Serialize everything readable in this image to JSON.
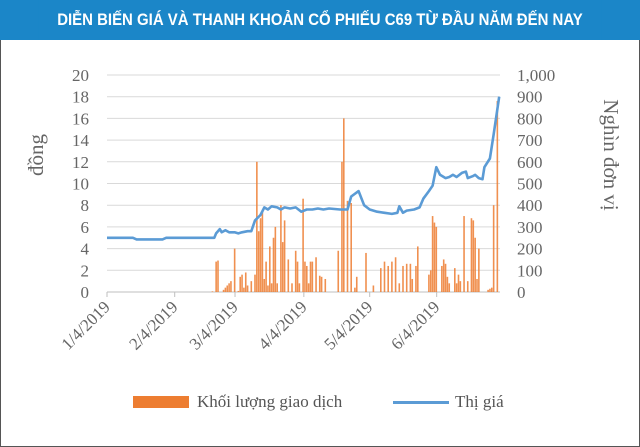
{
  "title": "DIỄN BIẾN GIÁ VÀ THANH KHOẢN CỔ PHIẾU C69 TỪ ĐẦU NĂM ĐẾN NAY",
  "colors": {
    "header": "#1b86c8",
    "price_line": "#5b9bd5",
    "volume_bar": "#ed7d31",
    "grid": "#d9d9d9",
    "text": "#666666"
  },
  "chart_data": {
    "type": "bar+line",
    "title": "DIỄN BIẾN GIÁ VÀ THANH KHOẢN CỔ PHIẾU C69 TỪ ĐẦU NĂM ĐẾN NAY",
    "ylabel_left": "đồng",
    "ylabel_right": "Nghìn đơn vị",
    "y_left_ticks": [
      "0",
      "2",
      "4",
      "6",
      "8",
      "10",
      "12",
      "14",
      "16",
      "18",
      "20"
    ],
    "y_left_range": [
      0,
      20
    ],
    "y_right_ticks": [
      "0",
      "100",
      "200",
      "300",
      "400",
      "500",
      "600",
      "700",
      "800",
      "900",
      "1,000"
    ],
    "y_right_range": [
      0,
      1000
    ],
    "x_ticks": [
      "1/4/2019",
      "2/4/2019",
      "3/4/2019",
      "4/4/2019",
      "5/4/2019",
      "6/4/2019"
    ],
    "x_tick_positions": [
      0.0,
      0.183,
      0.346,
      0.532,
      0.71,
      0.891
    ],
    "grid": true,
    "legend_position": "bottom",
    "legend": [
      "Khối lượng giao dịch",
      "Thị giá"
    ],
    "series": [
      {
        "name": "Thị giá",
        "type": "line",
        "axis": "left",
        "points": [
          [
            0.0,
            5.0
          ],
          [
            0.07,
            5.0
          ],
          [
            0.08,
            4.85
          ],
          [
            0.15,
            4.85
          ],
          [
            0.16,
            5.0
          ],
          [
            0.28,
            5.0
          ],
          [
            0.29,
            5.0
          ],
          [
            0.295,
            5.4
          ],
          [
            0.305,
            5.8
          ],
          [
            0.31,
            5.5
          ],
          [
            0.32,
            5.7
          ],
          [
            0.33,
            5.5
          ],
          [
            0.345,
            5.5
          ],
          [
            0.355,
            5.4
          ],
          [
            0.365,
            5.5
          ],
          [
            0.38,
            5.6
          ],
          [
            0.39,
            5.6
          ],
          [
            0.4,
            6.6
          ],
          [
            0.415,
            7.1
          ],
          [
            0.425,
            7.8
          ],
          [
            0.435,
            7.6
          ],
          [
            0.445,
            7.9
          ],
          [
            0.46,
            7.8
          ],
          [
            0.47,
            7.6
          ],
          [
            0.48,
            7.8
          ],
          [
            0.495,
            7.7
          ],
          [
            0.51,
            7.8
          ],
          [
            0.525,
            7.4
          ],
          [
            0.54,
            7.6
          ],
          [
            0.555,
            7.6
          ],
          [
            0.57,
            7.7
          ],
          [
            0.585,
            7.6
          ],
          [
            0.6,
            7.7
          ],
          [
            0.63,
            7.6
          ],
          [
            0.65,
            7.6
          ],
          [
            0.66,
            8.8
          ],
          [
            0.68,
            9.3
          ],
          [
            0.695,
            8.0
          ],
          [
            0.71,
            7.6
          ],
          [
            0.73,
            7.4
          ],
          [
            0.75,
            7.3
          ],
          [
            0.77,
            7.2
          ],
          [
            0.785,
            7.3
          ],
          [
            0.79,
            7.9
          ],
          [
            0.8,
            7.3
          ],
          [
            0.81,
            7.5
          ],
          [
            0.83,
            7.6
          ],
          [
            0.845,
            7.8
          ],
          [
            0.855,
            8.6
          ],
          [
            0.87,
            9.3
          ],
          [
            0.88,
            9.8
          ],
          [
            0.89,
            11.5
          ],
          [
            0.9,
            10.8
          ],
          [
            0.915,
            10.5
          ],
          [
            0.925,
            10.6
          ],
          [
            0.935,
            10.8
          ],
          [
            0.945,
            10.6
          ],
          [
            0.96,
            11.0
          ],
          [
            0.97,
            11.1
          ],
          [
            0.975,
            10.5
          ],
          [
            0.99,
            10.7
          ],
          [
            0.995,
            10.8
          ],
          [
            1.005,
            10.5
          ],
          [
            1.015,
            10.4
          ],
          [
            1.02,
            11.5
          ],
          [
            1.035,
            12.3
          ],
          [
            1.045,
            14.5
          ],
          [
            1.06,
            18.0
          ]
        ]
      },
      {
        "name": "Khối lượng giao dịch",
        "type": "bar",
        "axis": "right",
        "points": [
          [
            0.285,
            3
          ],
          [
            0.295,
            140
          ],
          [
            0.3,
            145
          ],
          [
            0.315,
            10
          ],
          [
            0.32,
            20
          ],
          [
            0.325,
            30
          ],
          [
            0.33,
            40
          ],
          [
            0.335,
            50
          ],
          [
            0.345,
            200
          ],
          [
            0.355,
            5
          ],
          [
            0.36,
            70
          ],
          [
            0.365,
            80
          ],
          [
            0.37,
            20
          ],
          [
            0.375,
            90
          ],
          [
            0.38,
            30
          ],
          [
            0.39,
            50
          ],
          [
            0.4,
            80
          ],
          [
            0.405,
            600
          ],
          [
            0.41,
            280
          ],
          [
            0.415,
            340
          ],
          [
            0.42,
            370
          ],
          [
            0.425,
            60
          ],
          [
            0.43,
            140
          ],
          [
            0.435,
            30
          ],
          [
            0.44,
            210
          ],
          [
            0.445,
            40
          ],
          [
            0.45,
            250
          ],
          [
            0.455,
            300
          ],
          [
            0.46,
            40
          ],
          [
            0.47,
            400
          ],
          [
            0.475,
            230
          ],
          [
            0.48,
            330
          ],
          [
            0.49,
            150
          ],
          [
            0.5,
            40
          ],
          [
            0.51,
            190
          ],
          [
            0.515,
            140
          ],
          [
            0.52,
            40
          ],
          [
            0.53,
            430
          ],
          [
            0.535,
            140
          ],
          [
            0.54,
            120
          ],
          [
            0.545,
            40
          ],
          [
            0.55,
            140
          ],
          [
            0.555,
            140
          ],
          [
            0.565,
            160
          ],
          [
            0.575,
            75
          ],
          [
            0.58,
            70
          ],
          [
            0.59,
            60
          ],
          [
            0.625,
            190
          ],
          [
            0.635,
            600
          ],
          [
            0.64,
            800
          ],
          [
            0.65,
            420
          ],
          [
            0.66,
            410
          ],
          [
            0.67,
            20
          ],
          [
            0.675,
            70
          ],
          [
            0.7,
            180
          ],
          [
            0.72,
            30
          ],
          [
            0.74,
            110
          ],
          [
            0.75,
            140
          ],
          [
            0.76,
            120
          ],
          [
            0.77,
            140
          ],
          [
            0.78,
            160
          ],
          [
            0.79,
            40
          ],
          [
            0.8,
            120
          ],
          [
            0.81,
            130
          ],
          [
            0.82,
            130
          ],
          [
            0.825,
            60
          ],
          [
            0.835,
            120
          ],
          [
            0.84,
            210
          ],
          [
            0.87,
            80
          ],
          [
            0.875,
            100
          ],
          [
            0.88,
            350
          ],
          [
            0.885,
            320
          ],
          [
            0.89,
            300
          ],
          [
            0.905,
            120
          ],
          [
            0.91,
            150
          ],
          [
            0.915,
            130
          ],
          [
            0.92,
            70
          ],
          [
            0.925,
            40
          ],
          [
            0.94,
            110
          ],
          [
            0.945,
            40
          ],
          [
            0.95,
            80
          ],
          [
            0.955,
            50
          ],
          [
            0.965,
            350
          ],
          [
            0.975,
            50
          ],
          [
            0.985,
            340
          ],
          [
            0.99,
            330
          ],
          [
            0.995,
            250
          ],
          [
            1.0,
            60
          ],
          [
            1.005,
            200
          ],
          [
            1.03,
            10
          ],
          [
            1.035,
            15
          ],
          [
            1.04,
            20
          ],
          [
            1.045,
            400
          ],
          [
            1.055,
            880
          ]
        ]
      }
    ]
  }
}
